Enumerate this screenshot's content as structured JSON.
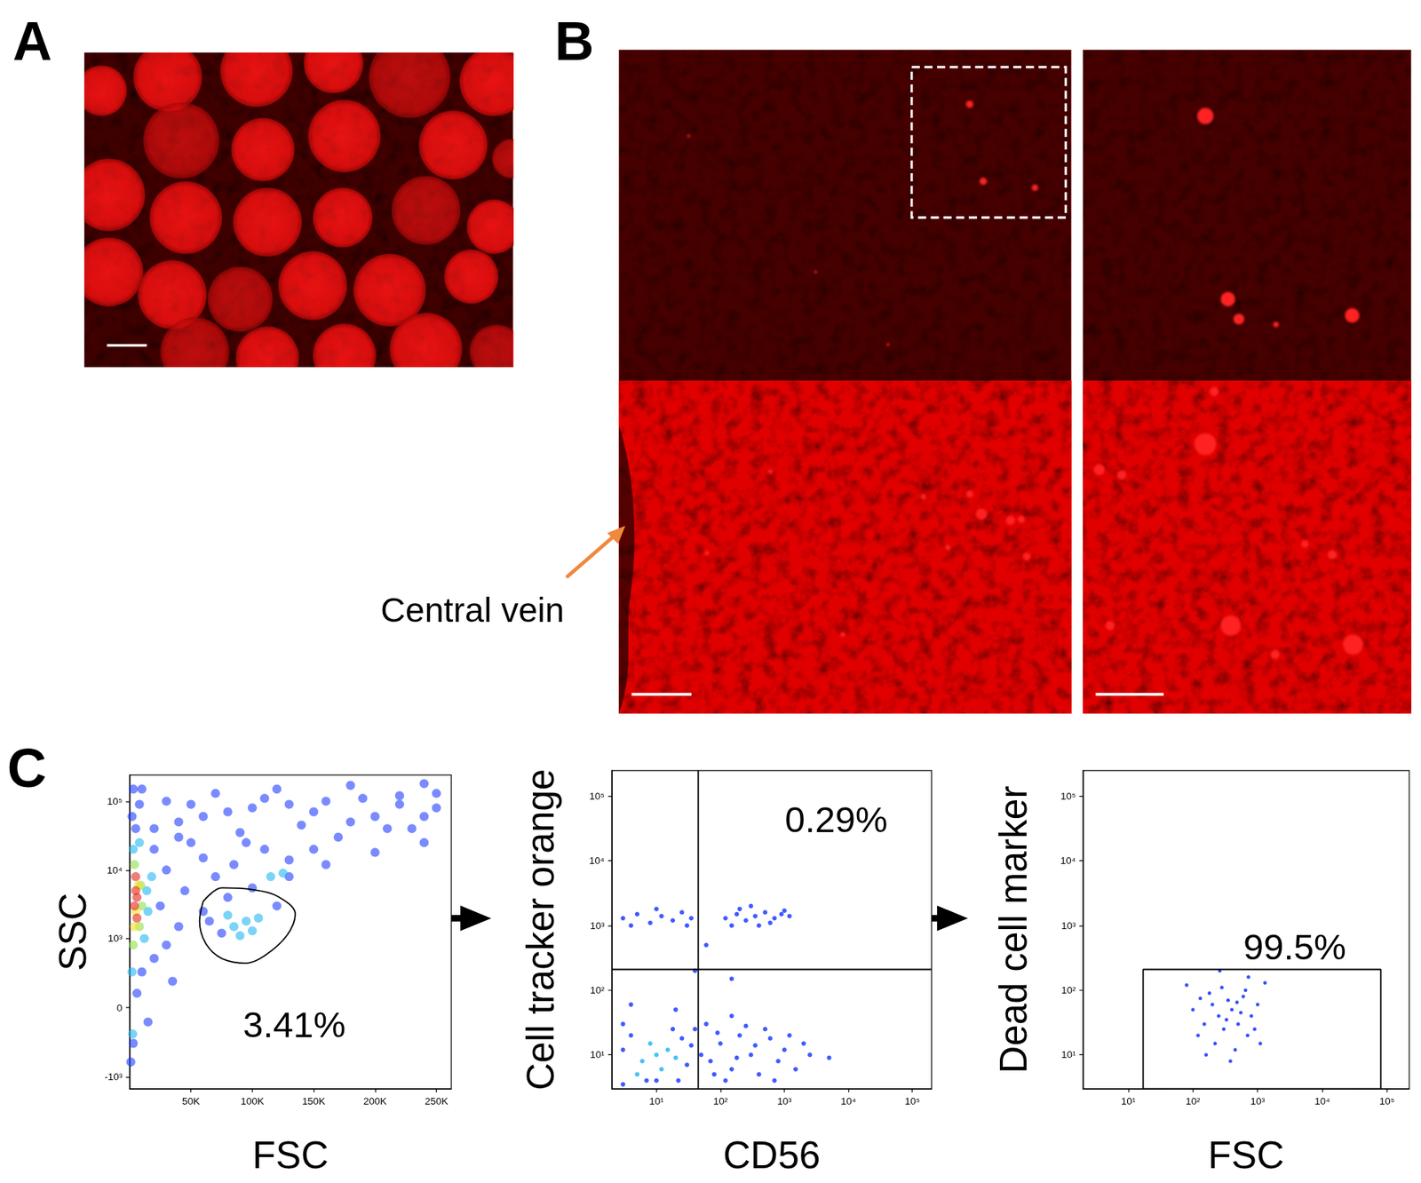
{
  "panel_labels": [
    "A",
    "B",
    "C"
  ],
  "annotations": [
    {
      "text": "Central vein"
    }
  ],
  "chart_data": [
    {
      "type": "scatter",
      "xlabel": "FSC",
      "ylabel": "SSC",
      "log": "y",
      "grid": false,
      "xlim": [
        0,
        262144
      ],
      "ylim": [
        -1500,
        240000
      ],
      "xticks": [
        {
          "value": 50000,
          "label": "50K"
        },
        {
          "value": 100000,
          "label": "100K"
        },
        {
          "value": 150000,
          "label": "150K"
        },
        {
          "value": 200000,
          "label": "200K"
        },
        {
          "value": 250000,
          "label": "250K"
        }
      ],
      "yticks": [
        {
          "value": -1000,
          "label": "-10³"
        },
        0,
        {
          "value": 1000,
          "label": "10³"
        },
        {
          "value": 10000,
          "label": "10⁴"
        },
        {
          "value": 100000,
          "label": "10⁵"
        }
      ],
      "series": [
        {
          "color": "#1f3dff",
          "values": [
            [
              1000,
              -600
            ],
            [
              3000,
              -300
            ],
            [
              6000,
              100
            ],
            [
              10000,
              300
            ],
            [
              20000,
              500
            ],
            [
              30000,
              800
            ],
            [
              40000,
              1500
            ],
            [
              60000,
              2500
            ],
            [
              80000,
              4000
            ],
            [
              100000,
              5500
            ],
            [
              130000,
              8000
            ],
            [
              160000,
              12000
            ],
            [
              200000,
              18000
            ],
            [
              240000,
              25000
            ],
            [
              20000,
              40000
            ],
            [
              40000,
              50000
            ],
            [
              60000,
              60000
            ],
            [
              80000,
              70000
            ],
            [
              100000,
              80000
            ],
            [
              130000,
              90000
            ],
            [
              160000,
              100000
            ],
            [
              190000,
              110000
            ],
            [
              220000,
              120000
            ],
            [
              250000,
              130000
            ],
            [
              30000,
              100000
            ],
            [
              70000,
              130000
            ],
            [
              120000,
              150000
            ],
            [
              180000,
              170000
            ],
            [
              240000,
              180000
            ],
            [
              10000,
              150000
            ],
            [
              50000,
              25000
            ],
            [
              90000,
              35000
            ],
            [
              140000,
              45000
            ],
            [
              200000,
              60000
            ],
            [
              250000,
              80000
            ],
            [
              110000,
              20000
            ],
            [
              170000,
              30000
            ],
            [
              230000,
              40000
            ],
            [
              60000,
              15000
            ],
            [
              150000,
              20000
            ],
            [
              30000,
              10000
            ],
            [
              70000,
              8000
            ],
            [
              45000,
              5000
            ],
            [
              25000,
              3000
            ],
            [
              130000,
              14000
            ],
            [
              210000,
              40000
            ],
            [
              240000,
              60000
            ],
            [
              2000,
              60000
            ],
            [
              3000,
              150000
            ],
            [
              75000,
              1200
            ],
            [
              120000,
              3000
            ],
            [
              65000,
              1800
            ],
            [
              15000,
              -100
            ],
            [
              35000,
              200
            ],
            [
              85000,
              12000
            ],
            [
              95000,
              25000
            ],
            [
              180000,
              50000
            ],
            [
              220000,
              90000
            ],
            [
              150000,
              70000
            ],
            [
              110000,
              110000
            ],
            [
              50000,
              90000
            ],
            [
              20000,
              20000
            ],
            [
              40000,
              30000
            ],
            [
              5000,
              40000
            ],
            [
              8000,
              90000
            ]
          ]
        },
        {
          "color": "#23b8f2",
          "values": [
            [
              12000,
              1000
            ],
            [
              14000,
              5000
            ],
            [
              3000,
              20000
            ],
            [
              8000,
              25000
            ],
            [
              15000,
              2500
            ],
            [
              2000,
              300
            ],
            [
              2500,
              -200
            ],
            [
              18000,
              8000
            ],
            [
              85000,
              1500
            ],
            [
              95000,
              1800
            ],
            [
              100000,
              1300
            ],
            [
              90000,
              1100
            ],
            [
              105000,
              2000
            ],
            [
              115000,
              8000
            ],
            [
              125000,
              9000
            ],
            [
              80000,
              2200
            ]
          ]
        },
        {
          "color": "#8fe04a",
          "values": [
            [
              8000,
              1500
            ],
            [
              4000,
              12000
            ],
            [
              9000,
              6000
            ],
            [
              3000,
              800
            ],
            [
              10000,
              3000
            ]
          ]
        },
        {
          "color": "#f4e12c",
          "values": [
            [
              5000,
              2500
            ],
            [
              7000,
              6000
            ],
            [
              4000,
              1500
            ]
          ]
        },
        {
          "color": "#e5261c",
          "values": [
            [
              4000,
              3000
            ],
            [
              5000,
              5000
            ],
            [
              6000,
              2000
            ],
            [
              5000,
              8000
            ],
            [
              6000,
              4000
            ]
          ]
        }
      ],
      "gate": {
        "points": [
          [
            60000,
            3500
          ],
          [
            75000,
            5500
          ],
          [
            100000,
            5200
          ],
          [
            120000,
            4200
          ],
          [
            135000,
            2300
          ],
          [
            128000,
            1100
          ],
          [
            110000,
            550
          ],
          [
            95000,
            420
          ],
          [
            75000,
            500
          ],
          [
            62000,
            850
          ],
          [
            57000,
            1800
          ]
        ],
        "label": "3.41%"
      }
    },
    {
      "type": "scatter",
      "xlabel": "CD56",
      "ylabel": "Cell tracker orange",
      "log": true,
      "grid": false,
      "xlim": [
        2,
        200000
      ],
      "ylim": [
        3,
        250000
      ],
      "xticks": [
        {
          "value": 10,
          "label": "10¹"
        },
        {
          "value": 100,
          "label": "10²"
        },
        {
          "value": 1000,
          "label": "10³"
        },
        {
          "value": 10000,
          "label": "10⁴"
        },
        {
          "value": 100000,
          "label": "10⁵"
        }
      ],
      "yticks": [
        {
          "value": 10,
          "label": "10¹"
        },
        {
          "value": 100,
          "label": "10²"
        },
        {
          "value": 1000,
          "label": "10³"
        },
        {
          "value": 10000,
          "label": "10⁴"
        },
        {
          "value": 100000,
          "label": "10⁵"
        }
      ],
      "series": [
        {
          "color": "#1f3dff",
          "values": [
            [
              4,
              20
            ],
            [
              25,
              18
            ],
            [
              30,
              7
            ],
            [
              3,
              12
            ],
            [
              18,
              25
            ],
            [
              35,
              14
            ],
            [
              7,
              4
            ],
            [
              22,
              4
            ],
            [
              3,
              3.5
            ],
            [
              40,
              25
            ],
            [
              50,
              10
            ],
            [
              70,
              8
            ],
            [
              100,
              15
            ],
            [
              150,
              6
            ],
            [
              200,
              20
            ],
            [
              300,
              10
            ],
            [
              400,
              5
            ],
            [
              600,
              18
            ],
            [
              800,
              8
            ],
            [
              1000,
              12
            ],
            [
              1500,
              6
            ],
            [
              2000,
              15
            ],
            [
              2500,
              10
            ],
            [
              5000,
              9
            ],
            [
              120,
              4
            ],
            [
              250,
              28
            ],
            [
              60,
              30
            ],
            [
              90,
              22
            ],
            [
              500,
              25
            ],
            [
              1200,
              20
            ],
            [
              350,
              14
            ],
            [
              180,
              9
            ],
            [
              700,
              4
            ],
            [
              80,
              5
            ],
            [
              3,
              30
            ],
            [
              4,
              60
            ],
            [
              20,
              50
            ],
            [
              150,
              40
            ],
            [
              10,
              4
            ],
            [
              3,
              1300
            ],
            [
              5,
              1500
            ],
            [
              8,
              1100
            ],
            [
              12,
              1400
            ],
            [
              18,
              1200
            ],
            [
              25,
              1600
            ],
            [
              35,
              1300
            ],
            [
              4,
              1000
            ],
            [
              10,
              1800
            ],
            [
              30,
              1000
            ],
            [
              120,
              1300
            ],
            [
              180,
              1500
            ],
            [
              250,
              1200
            ],
            [
              350,
              1400
            ],
            [
              500,
              1600
            ],
            [
              700,
              1300
            ],
            [
              900,
              1500
            ],
            [
              1200,
              1400
            ],
            [
              200,
              1800
            ],
            [
              600,
              1100
            ],
            [
              400,
              1000
            ],
            [
              1000,
              1700
            ],
            [
              150,
              1000
            ],
            [
              300,
              2000
            ],
            [
              40,
              200
            ],
            [
              150,
              150
            ],
            [
              60,
              500
            ]
          ]
        },
        {
          "color": "#23b8f2",
          "values": [
            [
              6,
              8
            ],
            [
              10,
              10
            ],
            [
              15,
              12
            ],
            [
              8,
              15
            ],
            [
              12,
              6
            ],
            [
              20,
              9
            ],
            [
              5,
              5
            ]
          ]
        }
      ],
      "quadrant": {
        "x": 45,
        "y": 210,
        "label": "0.29%"
      }
    },
    {
      "type": "scatter",
      "xlabel": "FSC",
      "ylabel": "Dead cell marker",
      "log": true,
      "grid": false,
      "xlim": [
        2,
        220000
      ],
      "ylim": [
        3,
        250000
      ],
      "xticks": [
        {
          "value": 10,
          "label": "10¹"
        },
        {
          "value": 100,
          "label": "10²"
        },
        {
          "value": 1000,
          "label": "10³"
        },
        {
          "value": 10000,
          "label": "10⁴"
        },
        {
          "value": 100000,
          "label": "10⁵"
        }
      ],
      "yticks": [
        {
          "value": 10,
          "label": "10¹"
        },
        {
          "value": 100,
          "label": "10²"
        },
        {
          "value": 1000,
          "label": "10³"
        },
        {
          "value": 10000,
          "label": "10⁴"
        },
        {
          "value": 100000,
          "label": "10⁵"
        }
      ],
      "series": [
        {
          "color": "#1f3dff",
          "values": [
            [
              100,
              50
            ],
            [
              150,
              30
            ],
            [
              200,
              60
            ],
            [
              250,
              40
            ],
            [
              300,
              25
            ],
            [
              350,
              70
            ],
            [
              400,
              50
            ],
            [
              500,
              30
            ],
            [
              600,
              80
            ],
            [
              700,
              20
            ],
            [
              800,
              40
            ],
            [
              1000,
              60
            ],
            [
              120,
              20
            ],
            [
              180,
              90
            ],
            [
              220,
              15
            ],
            [
              280,
              110
            ],
            [
              330,
              35
            ],
            [
              450,
              12
            ],
            [
              550,
              45
            ],
            [
              650,
              100
            ],
            [
              900,
              25
            ],
            [
              1300,
              130
            ],
            [
              80,
              120
            ],
            [
              160,
              10
            ],
            [
              380,
              8
            ],
            [
              260,
              200
            ],
            [
              720,
              160
            ],
            [
              480,
              65
            ],
            [
              130,
              75
            ],
            [
              1100,
              15
            ]
          ]
        }
      ],
      "gate": {
        "x": [
          17,
          80000
        ],
        "y": [
          3,
          210
        ],
        "label": "99.5%"
      }
    }
  ]
}
